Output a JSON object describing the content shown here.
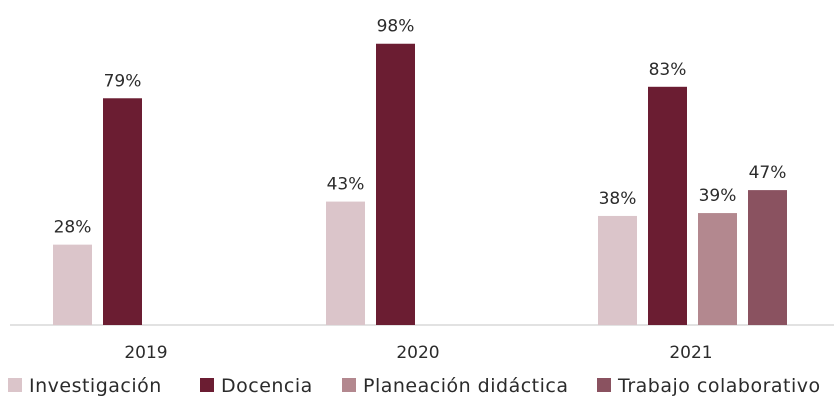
{
  "chart_data": {
    "type": "bar",
    "categories": [
      "2019",
      "2020",
      "2021"
    ],
    "series": [
      {
        "name": "Investigación",
        "color": "#dbc5ca",
        "values": [
          28,
          43,
          38
        ]
      },
      {
        "name": "Docencia",
        "color": "#6b1d32",
        "values": [
          79,
          98,
          83
        ]
      },
      {
        "name": "Planeación didáctica",
        "color": "#b3888f",
        "values": [
          null,
          null,
          39
        ]
      },
      {
        "name": "Trabajo colaborativo",
        "color": "#8a5260",
        "values": [
          null,
          null,
          47
        ]
      }
    ],
    "value_suffix": "%",
    "ylim": [
      0,
      100
    ],
    "grid": false,
    "legend_position": "bottom"
  }
}
